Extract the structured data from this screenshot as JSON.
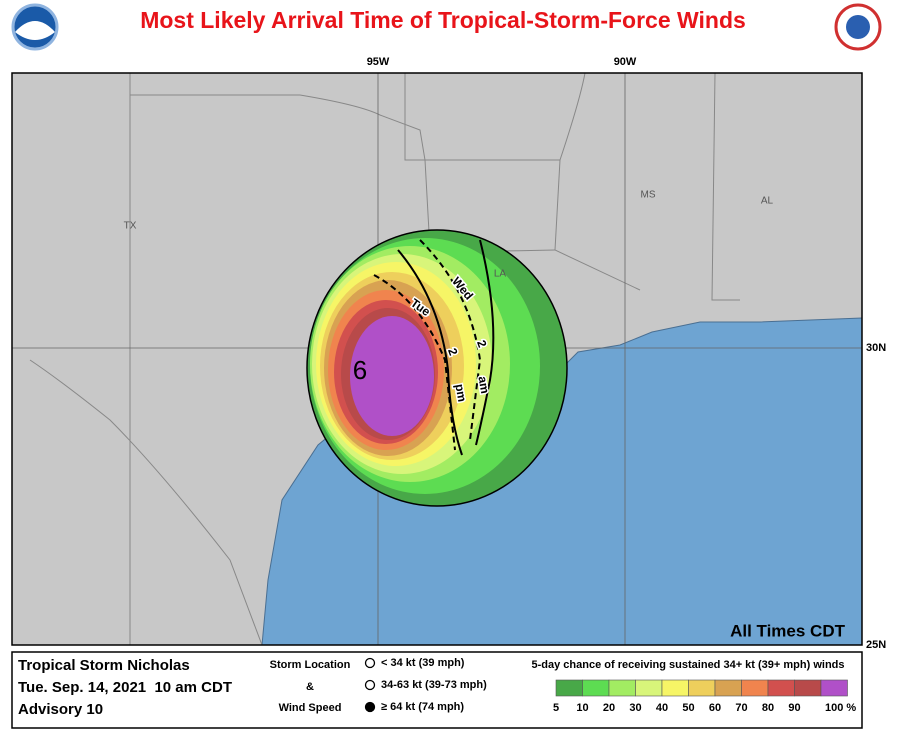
{
  "header": {
    "title": "Most Likely Arrival Time of Tropical-Storm-Force Winds"
  },
  "map": {
    "longitude_labels": [
      "95W",
      "90W"
    ],
    "latitude_labels": [
      "30N",
      "25N"
    ],
    "state_labels": [
      "TX",
      "LA",
      "MS",
      "AL"
    ],
    "contour_labels": [
      "Tue",
      "2",
      "pm",
      "Wed",
      "2",
      "am"
    ],
    "times_note": "All Times CDT"
  },
  "footer": {
    "storm": {
      "name": "Tropical Storm Nicholas",
      "date": "Tue. Sep. 14, 2021  10 am CDT",
      "advisory": "Advisory 10"
    },
    "key": {
      "title_lines": [
        "Storm Location",
        "&",
        "Wind Speed"
      ],
      "entries": [
        "< 34 kt (39 mph)",
        "34-63 kt (39-73 mph)",
        "≥ 64 kt (74 mph)"
      ]
    },
    "scale": {
      "title": "5-day chance of receiving sustained 34+ kt (39+ mph) winds",
      "labels": [
        "5",
        "10",
        "20",
        "30",
        "40",
        "50",
        "60",
        "70",
        "80",
        "90",
        "100 %"
      ],
      "colors": [
        "#48a848",
        "#5ddc52",
        "#a2ec62",
        "#d8f57a",
        "#f6f566",
        "#eecf5c",
        "#d8a252",
        "#f0844e",
        "#d2504e",
        "#b84a4a",
        "#b050c8"
      ]
    }
  }
}
